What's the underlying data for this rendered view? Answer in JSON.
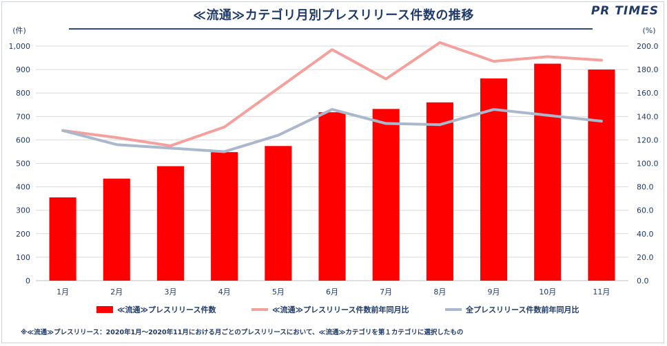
{
  "header": {
    "title": "≪流通≫カテゴリ月別プレスリリース件数の推移",
    "logo": "PR TIMES"
  },
  "footnote": "※≪流通≫プレスリリース：2020年1月～2020年11月における月ごとのプレスリリースにおいて、≪流通≫カテゴリを第１カテゴリに選択したもの",
  "colors": {
    "bars": "#ff0000",
    "category_yoy": "#f4a09c",
    "all_yoy": "#a9b8cc",
    "axis_text": "#1f3a6a",
    "grid": "#d9d9d9"
  },
  "chart_data": {
    "type": "bar",
    "categories": [
      "1月",
      "2月",
      "3月",
      "4月",
      "5月",
      "6月",
      "7月",
      "8月",
      "9月",
      "10月",
      "11月"
    ],
    "series": [
      {
        "name": "≪流通≫プレスリリース件数",
        "type": "bar",
        "axis": "left",
        "values": [
          355,
          435,
          488,
          548,
          574,
          718,
          732,
          760,
          862,
          925,
          900
        ]
      },
      {
        "name": "≪流通≫プレスリリース件数前年同月比",
        "type": "line",
        "axis": "right",
        "values": [
          128,
          122,
          115,
          131,
          164,
          197,
          172,
          203,
          187,
          191,
          188
        ]
      },
      {
        "name": "全プレスリリース件数前年同月比",
        "type": "line",
        "axis": "right",
        "values": [
          128,
          116,
          113,
          110,
          124,
          146,
          134,
          133,
          146,
          141,
          136
        ]
      }
    ],
    "y_left": {
      "label": "(件)",
      "ylim": [
        0,
        1000
      ],
      "ticks": [
        "0",
        "100",
        "200",
        "300",
        "400",
        "500",
        "600",
        "700",
        "800",
        "900",
        "1,000"
      ]
    },
    "y_right": {
      "label": "(%)",
      "ylim": [
        0,
        200
      ],
      "ticks": [
        "0.0",
        "20.0",
        "40.0",
        "60.0",
        "80.0",
        "100.0",
        "120.0",
        "140.0",
        "160.0",
        "180.0",
        "200.0"
      ]
    },
    "grid": true,
    "legend_position": "bottom"
  }
}
